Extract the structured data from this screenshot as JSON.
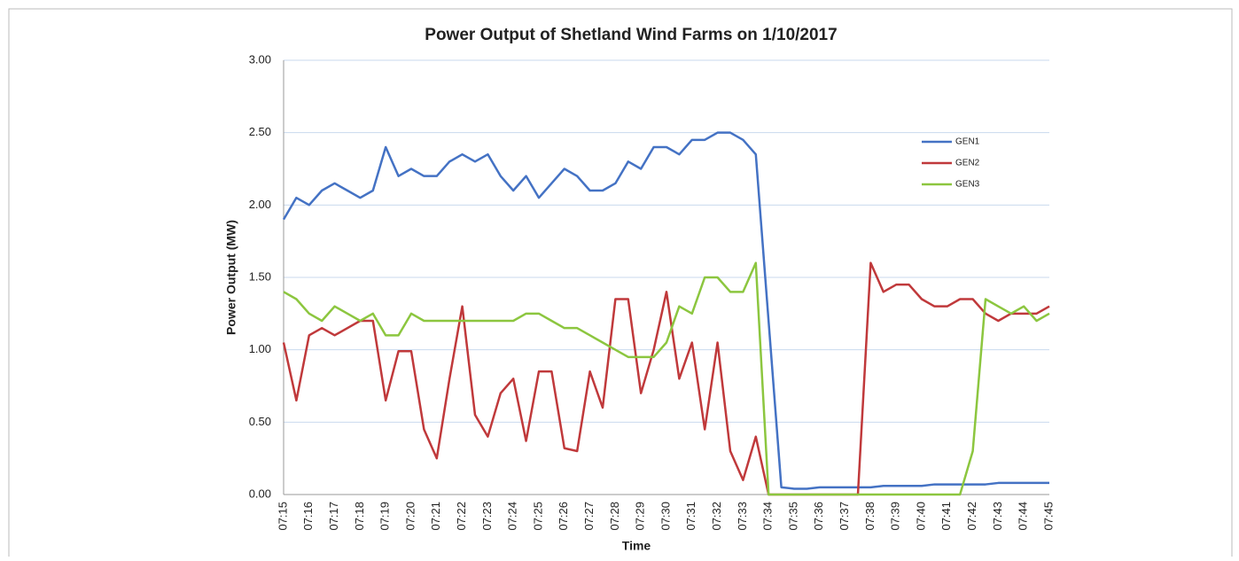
{
  "chart_data": {
    "type": "line",
    "title": "Power Output of Shetland Wind Farms on 1/10/2017",
    "x_label": "Time",
    "y_label": "Power Output (MW)",
    "categories": [
      "07:15",
      null,
      "07:16",
      null,
      "07:17",
      null,
      "07:18",
      null,
      "07:19",
      null,
      "07:20",
      null,
      "07:21",
      null,
      "07:22",
      null,
      "07:23",
      null,
      "07:24",
      null,
      "07:25",
      null,
      "07:26",
      null,
      "07:27",
      null,
      "07:28",
      null,
      "07:29",
      null,
      "07:30",
      null,
      "07:31",
      null,
      "07:32",
      null,
      "07:33",
      null,
      "07:34",
      null,
      "07:35",
      null,
      "07:36",
      null,
      "07:37",
      null,
      "07:38",
      null,
      "07:39",
      null,
      "07:40",
      null,
      "07:41",
      null,
      "07:42",
      null,
      "07:43",
      null,
      "07:44",
      null,
      "07:45"
    ],
    "series": [
      {
        "name": "GEN1",
        "color": "#4472c4",
        "values": [
          1.9,
          2.05,
          2.0,
          2.1,
          2.15,
          2.1,
          2.05,
          2.1,
          2.4,
          2.2,
          2.25,
          2.2,
          2.2,
          2.3,
          2.35,
          2.3,
          2.35,
          2.2,
          2.1,
          2.2,
          2.05,
          2.15,
          2.25,
          2.2,
          2.1,
          2.1,
          2.15,
          2.3,
          2.25,
          2.4,
          2.4,
          2.35,
          2.45,
          2.45,
          2.5,
          2.5,
          2.45,
          2.35,
          1.2,
          0.05,
          0.04,
          0.04,
          0.05,
          0.05,
          0.05,
          0.05,
          0.05,
          0.06,
          0.06,
          0.06,
          0.06,
          0.07,
          0.07,
          0.07,
          0.07,
          0.07,
          0.08,
          0.08,
          0.08,
          0.08,
          0.08
        ]
      },
      {
        "name": "GEN2",
        "color": "#c0393b",
        "values": [
          1.05,
          0.65,
          1.1,
          1.15,
          1.1,
          1.15,
          1.2,
          1.2,
          0.65,
          0.99,
          0.99,
          0.45,
          0.25,
          0.8,
          1.3,
          0.55,
          0.4,
          0.7,
          0.8,
          0.37,
          0.85,
          0.85,
          0.32,
          0.3,
          0.85,
          0.6,
          1.35,
          1.35,
          0.7,
          1.0,
          1.4,
          0.8,
          1.05,
          0.45,
          1.05,
          0.3,
          0.1,
          0.4,
          0,
          0,
          0,
          0,
          0,
          0,
          0,
          0,
          1.6,
          1.4,
          1.45,
          1.45,
          1.35,
          1.3,
          1.3,
          1.35,
          1.35,
          1.25,
          1.2,
          1.25,
          1.25,
          1.25,
          1.3
        ]
      },
      {
        "name": "GEN3",
        "color": "#8cc63f",
        "values": [
          1.4,
          1.35,
          1.25,
          1.2,
          1.3,
          1.25,
          1.2,
          1.25,
          1.1,
          1.1,
          1.25,
          1.2,
          1.2,
          1.2,
          1.2,
          1.2,
          1.2,
          1.2,
          1.2,
          1.25,
          1.25,
          1.2,
          1.15,
          1.15,
          1.1,
          1.05,
          1.0,
          0.95,
          0.95,
          0.95,
          1.05,
          1.3,
          1.25,
          1.5,
          1.5,
          1.4,
          1.4,
          1.6,
          0,
          0,
          0,
          0,
          0,
          0,
          0,
          0,
          0,
          0,
          0,
          0,
          0,
          0,
          0,
          0,
          0.3,
          1.35,
          1.3,
          1.25,
          1.3,
          1.2,
          1.25
        ]
      }
    ],
    "ylim": [
      0,
      3
    ],
    "yticks": [
      {
        "value": 0,
        "label": "0.00"
      },
      {
        "value": 0.5,
        "label": "0.50"
      },
      {
        "value": 1,
        "label": "1.00"
      },
      {
        "value": 1.5,
        "label": "1.50"
      },
      {
        "value": 2,
        "label": "2.00"
      },
      {
        "value": 2.5,
        "label": "2.50"
      },
      {
        "value": 3,
        "label": "3.00"
      }
    ],
    "grid": true,
    "legend": "right"
  }
}
